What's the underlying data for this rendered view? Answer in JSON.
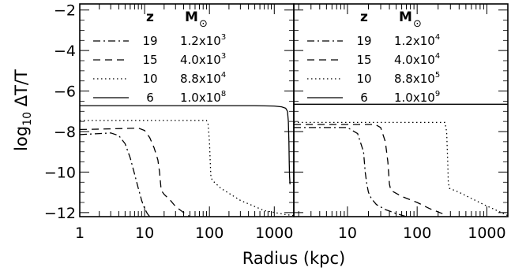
{
  "xlabel": "Radius (kpc)",
  "ylabel": "log₁₀ ΔT/T",
  "colors": {
    "line": "#000000",
    "background": "#ffffff"
  },
  "chart_data": [
    {
      "type": "line",
      "panel": "left",
      "x_scale": "log",
      "xlim": [
        1,
        2000
      ],
      "ylim": [
        -12.2,
        -1.7
      ],
      "xticks": [
        1,
        10,
        100,
        1000
      ],
      "xtick_labels": [
        "1",
        "10",
        "100",
        "1000"
      ],
      "yticks": [
        -2,
        -4,
        -6,
        -8,
        -10,
        -12
      ],
      "ytick_labels": [
        "−2",
        "−4",
        "−6",
        "−8",
        "−10",
        "−12"
      ],
      "legend": {
        "placement": "top-left",
        "header_z": "z",
        "header_m": "M",
        "header_m_sub": "⊙",
        "rows": [
          {
            "z": "19",
            "mantissa": "1.2x10",
            "exp": "3",
            "style": "dash-dot"
          },
          {
            "z": "15",
            "mantissa": "4.0x10",
            "exp": "3",
            "style": "dashed"
          },
          {
            "z": "10",
            "mantissa": "8.8x10",
            "exp": "4",
            "style": "dotted"
          },
          {
            "z": "6",
            "mantissa": "1.0x10",
            "exp": "8",
            "style": "solid"
          }
        ]
      },
      "series": [
        {
          "style": "dash-dot",
          "x": [
            1,
            1.5,
            2,
            3,
            4,
            5,
            6,
            7,
            8,
            8.5,
            9,
            10,
            11,
            12
          ],
          "y": [
            -8.15,
            -8.12,
            -8.1,
            -8.07,
            -8.2,
            -8.6,
            -9.3,
            -10.1,
            -10.8,
            -11.1,
            -11.4,
            -11.8,
            -12.05,
            -12.2
          ]
        },
        {
          "style": "dashed",
          "x": [
            1,
            2,
            5,
            8,
            10,
            12,
            14,
            16,
            17,
            18,
            20,
            25,
            30,
            40,
            50
          ],
          "y": [
            -7.9,
            -7.88,
            -7.85,
            -7.83,
            -7.95,
            -8.3,
            -8.8,
            -9.4,
            -10.0,
            -10.9,
            -11.1,
            -11.4,
            -11.7,
            -12.0,
            -12.2
          ]
        },
        {
          "style": "dotted",
          "x": [
            1,
            5,
            20,
            60,
            90,
            95,
            100,
            103,
            105,
            110,
            150,
            300,
            700,
            1500,
            2000
          ],
          "y": [
            -7.45,
            -7.45,
            -7.45,
            -7.45,
            -7.45,
            -7.6,
            -8.5,
            -9.5,
            -10.15,
            -10.4,
            -10.8,
            -11.4,
            -11.9,
            -12.1,
            -12.15
          ]
        },
        {
          "style": "solid",
          "x": [
            1,
            100,
            500,
            1000,
            1300,
            1500,
            1600,
            1650,
            1680,
            1700,
            1720,
            1750
          ],
          "y": [
            -6.72,
            -6.72,
            -6.72,
            -6.74,
            -6.78,
            -6.85,
            -7.0,
            -7.5,
            -8.5,
            -9.5,
            -10.2,
            -10.6
          ]
        }
      ]
    },
    {
      "type": "line",
      "panel": "right",
      "x_scale": "log",
      "xlim": [
        1.7,
        2000
      ],
      "ylim": [
        -12.2,
        -1.7
      ],
      "xticks": [
        10,
        100,
        1000
      ],
      "xtick_labels": [
        "10",
        "100",
        "1000"
      ],
      "yticks": [
        -2,
        -4,
        -6,
        -8,
        -10,
        -12
      ],
      "legend": {
        "placement": "top-left",
        "header_z": "z",
        "header_m": "M",
        "header_m_sub": "⊙",
        "rows": [
          {
            "z": "19",
            "mantissa": "1.2x10",
            "exp": "4",
            "style": "dash-dot"
          },
          {
            "z": "15",
            "mantissa": "4.0x10",
            "exp": "4",
            "style": "dashed"
          },
          {
            "z": "10",
            "mantissa": "8.8x10",
            "exp": "5",
            "style": "dotted"
          },
          {
            "z": "6",
            "mantissa": "1.0x10",
            "exp": "9",
            "style": "solid"
          }
        ]
      },
      "series": [
        {
          "style": "dash-dot",
          "x": [
            1.7,
            3,
            6,
            10,
            14,
            17,
            18,
            19,
            20,
            22,
            26,
            35,
            50,
            70
          ],
          "y": [
            -7.8,
            -7.8,
            -7.8,
            -7.8,
            -8.1,
            -9.0,
            -10.0,
            -10.6,
            -11.0,
            -11.3,
            -11.6,
            -11.85,
            -12.05,
            -12.2
          ]
        },
        {
          "style": "dashed",
          "x": [
            1.7,
            5,
            15,
            25,
            30,
            35,
            38,
            40,
            42,
            60,
            100,
            150,
            250
          ],
          "y": [
            -7.65,
            -7.65,
            -7.65,
            -7.65,
            -7.8,
            -8.5,
            -9.5,
            -10.6,
            -10.9,
            -11.2,
            -11.5,
            -11.8,
            -12.1
          ]
        },
        {
          "style": "dotted",
          "x": [
            1.7,
            20,
            100,
            250,
            265,
            275,
            280,
            290,
            400,
            600,
            900,
            1300,
            2000
          ],
          "y": [
            -7.55,
            -7.55,
            -7.55,
            -7.55,
            -8.0,
            -9.5,
            -10.5,
            -10.8,
            -11.0,
            -11.3,
            -11.6,
            -11.85,
            -12.15
          ]
        },
        {
          "style": "solid",
          "x": [
            1.7,
            2000
          ],
          "y": [
            -6.65,
            -6.65
          ]
        }
      ]
    }
  ]
}
